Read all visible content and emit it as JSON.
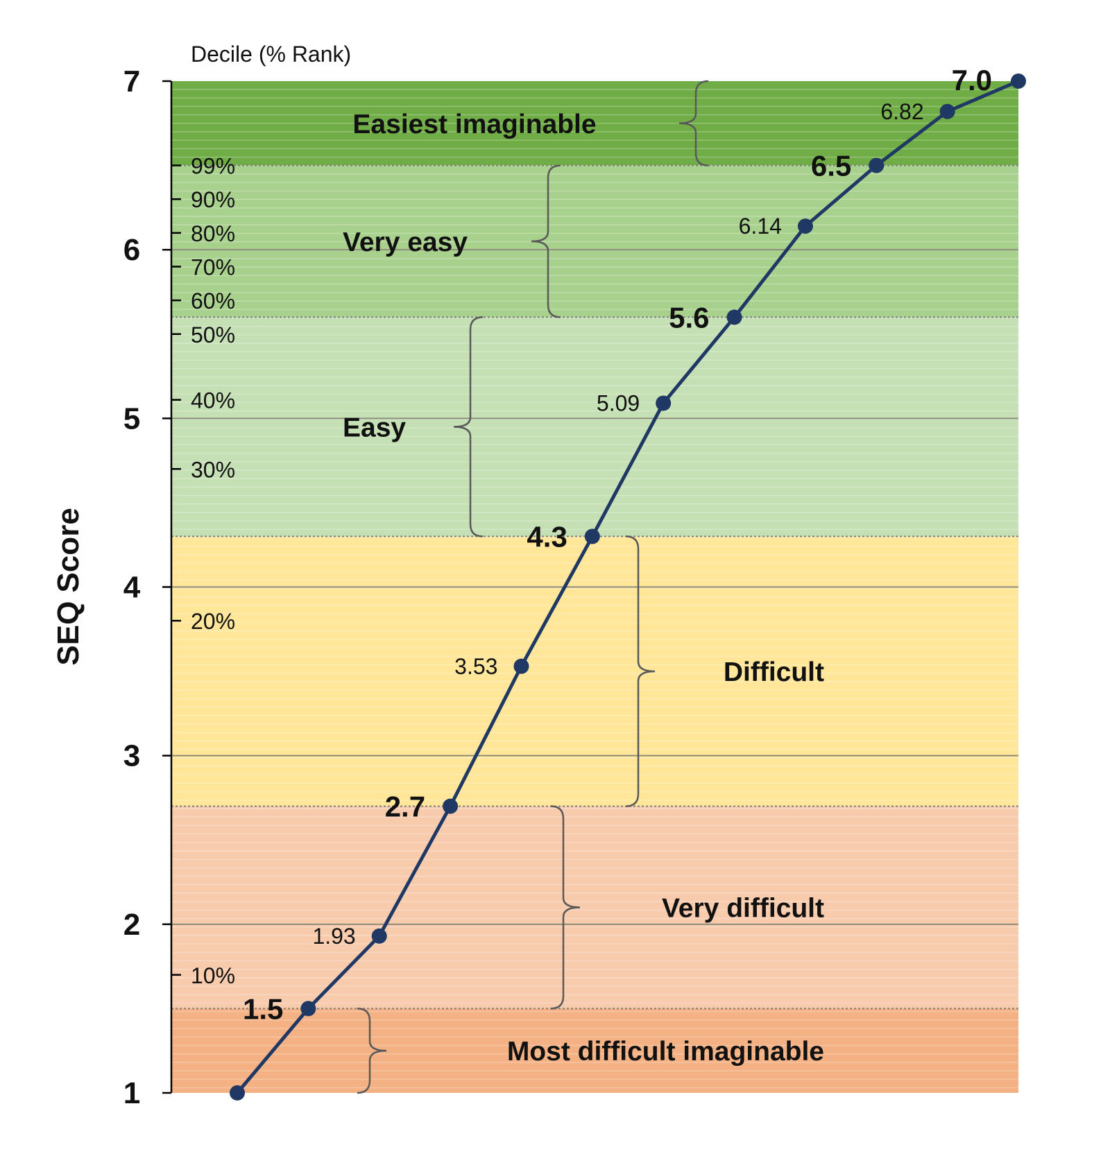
{
  "chart_data": {
    "type": "line",
    "title": "",
    "ylabel": "SEQ Score",
    "decile_axis_title": "Decile (% Rank)",
    "ylim": [
      1,
      7
    ],
    "yticks": [
      "1",
      "2",
      "3",
      "4",
      "5",
      "6",
      "7"
    ],
    "grid": true,
    "series": [
      {
        "color": "#1f3864",
        "y": [
          1.0,
          1.5,
          1.93,
          2.7,
          3.53,
          4.3,
          5.09,
          5.6,
          6.14,
          6.5,
          6.82,
          7.0
        ],
        "labels": [
          "",
          "1.5",
          "1.93",
          "2.7",
          "3.53",
          "4.3",
          "5.09",
          "5.6",
          "6.14",
          "6.5",
          "6.82",
          "7.0"
        ],
        "bold": [
          false,
          true,
          false,
          true,
          false,
          true,
          false,
          true,
          false,
          true,
          false,
          true
        ]
      }
    ],
    "deciles": [
      {
        "label": "99%",
        "y": 6.5
      },
      {
        "label": "90%",
        "y": 6.3
      },
      {
        "label": "80%",
        "y": 6.1
      },
      {
        "label": "70%",
        "y": 5.9
      },
      {
        "label": "60%",
        "y": 5.7
      },
      {
        "label": "50%",
        "y": 5.5
      },
      {
        "label": "40%",
        "y": 5.11
      },
      {
        "label": "30%",
        "y": 4.7
      },
      {
        "label": "20%",
        "y": 3.8
      },
      {
        "label": "10%",
        "y": 1.7
      }
    ],
    "bands": [
      {
        "label": "Easiest imaginable",
        "from": 6.5,
        "to": 7.0,
        "color": "#70ad47"
      },
      {
        "label": "Very easy",
        "from": 5.6,
        "to": 6.5,
        "color": "#a9d18e"
      },
      {
        "label": "Easy",
        "from": 4.3,
        "to": 5.6,
        "color": "#c5e0b4"
      },
      {
        "label": "Difficult",
        "from": 2.7,
        "to": 4.3,
        "color": "#ffe699"
      },
      {
        "label": "Very difficult",
        "from": 1.5,
        "to": 2.7,
        "color": "#f8cbad"
      },
      {
        "label": "Most difficult imaginable",
        "from": 1.0,
        "to": 1.5,
        "color": "#f4b183"
      }
    ]
  }
}
